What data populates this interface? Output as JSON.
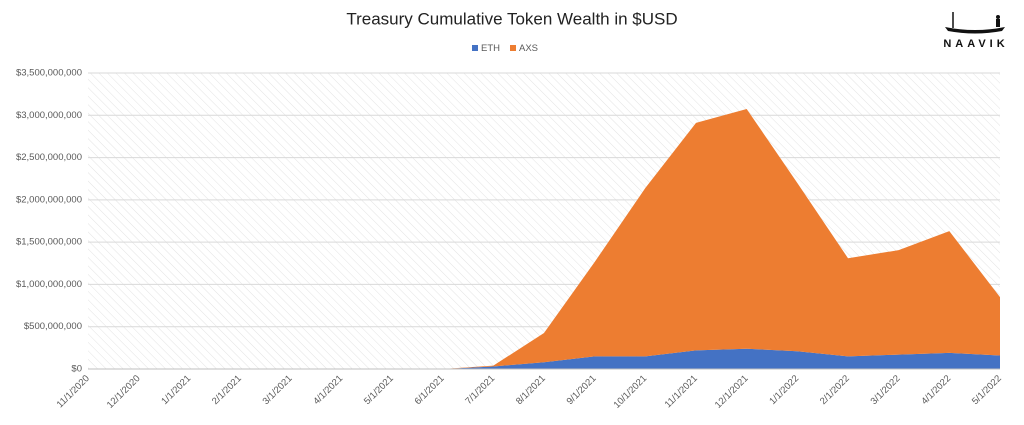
{
  "chart_data": {
    "type": "stacked_area",
    "title": "Treasury Cumulative Token Wealth in $USD",
    "logo_text": "NAAVIK",
    "categories": [
      "11/1/2020",
      "12/1/2020",
      "1/1/2021",
      "2/1/2021",
      "3/1/2021",
      "4/1/2021",
      "5/1/2021",
      "6/1/2021",
      "7/1/2021",
      "8/1/2021",
      "9/1/2021",
      "10/1/2021",
      "11/1/2021",
      "12/1/2021",
      "1/1/2022",
      "2/1/2022",
      "3/1/2022",
      "4/1/2022",
      "5/1/2022"
    ],
    "series": [
      {
        "name": "ETH",
        "color": "#4472c4",
        "values": [
          0,
          0,
          0,
          0,
          0,
          0,
          0,
          0,
          30000000,
          80000000,
          150000000,
          150000000,
          220000000,
          240000000,
          210000000,
          150000000,
          170000000,
          190000000,
          160000000
        ]
      },
      {
        "name": "AXS",
        "color": "#ed7d31",
        "values": [
          0,
          0,
          0,
          0,
          0,
          0,
          0,
          0,
          10000000,
          345000000,
          1115000000,
          1990000000,
          2690000000,
          2835000000,
          1990000000,
          1160000000,
          1235000000,
          1440000000,
          690000000
        ]
      }
    ],
    "ylim": [
      0,
      3500000000
    ],
    "yticks": [
      {
        "value": 0,
        "label": "$0"
      },
      {
        "value": 500000000,
        "label": "$500,000,000"
      },
      {
        "value": 1000000000,
        "label": "$1,000,000,000"
      },
      {
        "value": 1500000000,
        "label": "$1,500,000,000"
      },
      {
        "value": 2000000000,
        "label": "$2,000,000,000"
      },
      {
        "value": 2500000000,
        "label": "$2,500,000,000"
      },
      {
        "value": 3000000000,
        "label": "$3,000,000,000"
      },
      {
        "value": 3500000000,
        "label": "$3,500,000,000"
      }
    ],
    "grid": true,
    "legend": "top"
  }
}
